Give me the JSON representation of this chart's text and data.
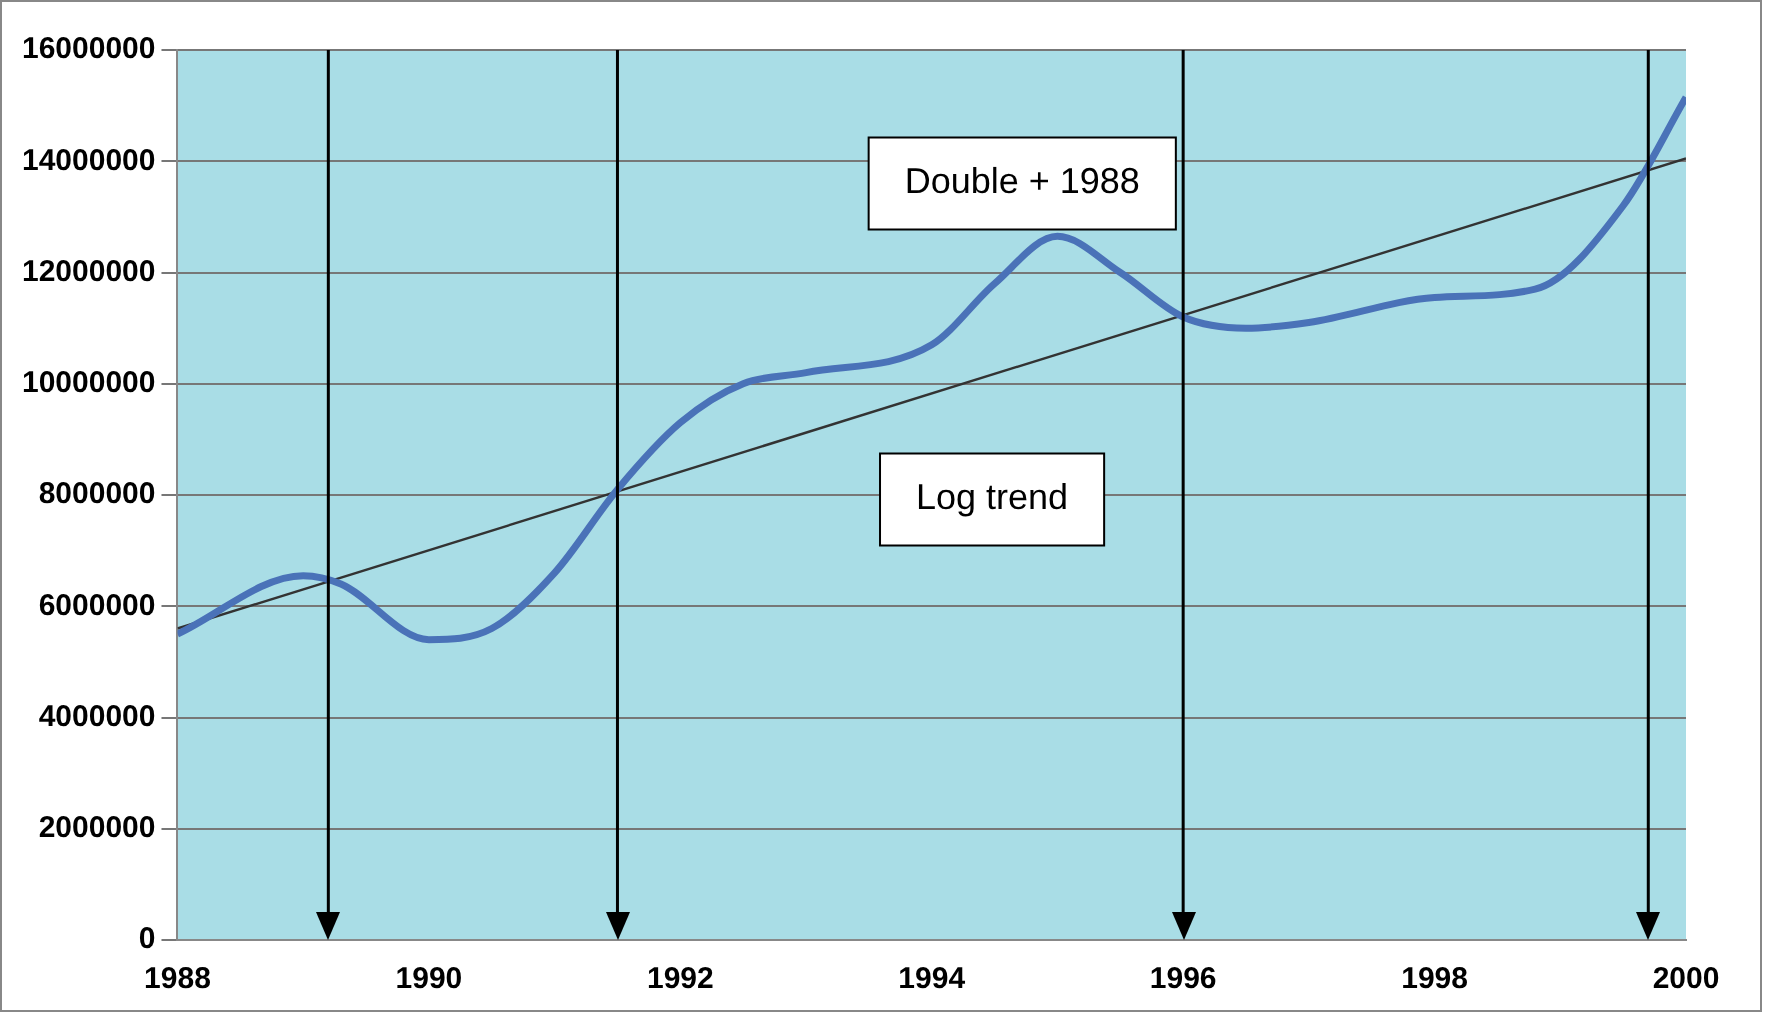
{
  "chart_data": {
    "type": "line",
    "xlim": [
      1988,
      2000
    ],
    "xticks": [
      1988,
      1990,
      1992,
      1994,
      1996,
      1998,
      2000
    ],
    "ylim": [
      0,
      16000000
    ],
    "yticks": [
      0,
      2000000,
      4000000,
      6000000,
      8000000,
      10000000,
      12000000,
      14000000,
      16000000
    ],
    "grid": "y",
    "marker": "none",
    "line_style": "solid",
    "series": [
      {
        "color": "#4a72b8",
        "x": [
          1988,
          1989,
          1989.3,
          1990,
          1990.5,
          1991,
          1991.5,
          1992,
          1992.5,
          1993,
          1994,
          1994.5,
          1995,
          1995.5,
          1996,
          1996.5,
          1997,
          1998,
          1998.8,
          1999.5,
          2000
        ],
        "values": [
          5500000,
          6550000,
          6400000,
          5400000,
          5600000,
          6600000,
          8100000,
          9300000,
          10000000,
          10200000,
          10700000,
          11800000,
          12650000,
          12000000,
          11200000,
          11000000,
          11100000,
          11550000,
          11700000,
          13200000,
          15150000
        ]
      },
      {
        "type": "line",
        "color": "#333333",
        "x": [
          1988,
          2000
        ],
        "values": [
          5600000,
          14050000
        ]
      }
    ],
    "ref_lines": [
      {
        "axis": "x",
        "value": 1989.2
      },
      {
        "axis": "x",
        "value": 1991.5
      },
      {
        "axis": "x",
        "value": 1996
      },
      {
        "axis": "x",
        "value": 1999.7
      }
    ],
    "annotations": [
      "Double + 1988",
      "Log trend"
    ]
  }
}
